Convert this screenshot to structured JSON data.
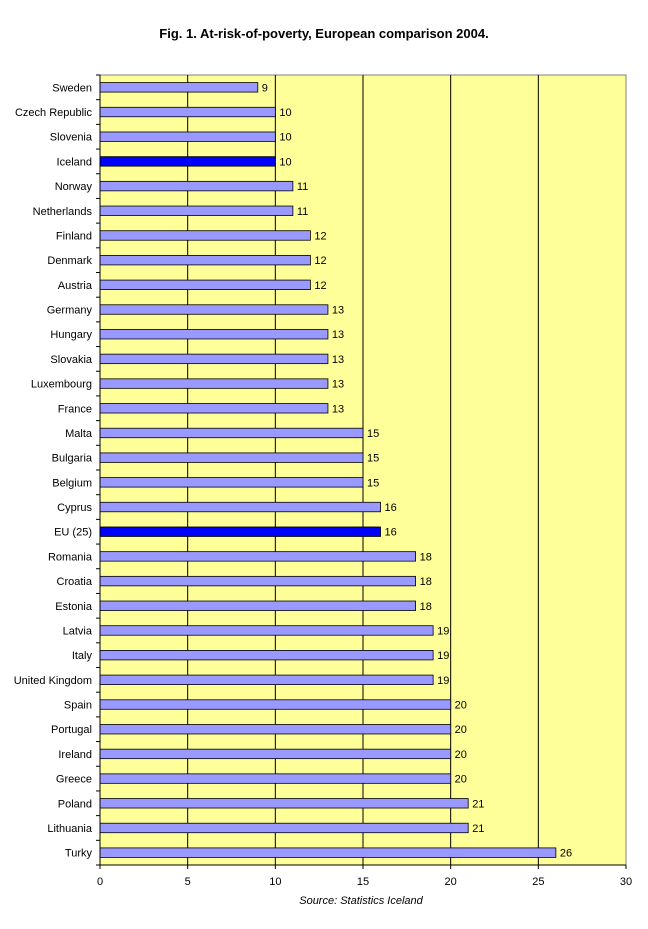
{
  "chart_data": {
    "type": "bar",
    "orientation": "horizontal",
    "title": "Fig. 1. At-risk-of-poverty, European comparison 2004.",
    "source": "Source: Statistics Iceland",
    "categories": [
      "Sweden",
      "Czech Republic",
      "Slovenia",
      "Iceland",
      "Norway",
      "Netherlands",
      "Finland",
      "Denmark",
      "Austria",
      "Germany",
      "Hungary",
      "Slovakia",
      "Luxembourg",
      "France",
      "Malta",
      "Bulgaria",
      "Belgium",
      "Cyprus",
      "EU (25)",
      "Romania",
      "Croatia",
      "Estonia",
      "Latvia",
      "Italy",
      "United Kingdom",
      "Spain",
      "Portugal",
      "Ireland",
      "Greece",
      "Poland",
      "Lithuania",
      "Turky"
    ],
    "values": [
      9,
      10,
      10,
      10,
      11,
      11,
      12,
      12,
      12,
      13,
      13,
      13,
      13,
      13,
      15,
      15,
      15,
      16,
      16,
      18,
      18,
      18,
      19,
      19,
      19,
      20,
      20,
      20,
      20,
      21,
      21,
      26
    ],
    "highlighted": [
      "Iceland",
      "EU (25)"
    ],
    "xlim": [
      0,
      30
    ],
    "xticks": [
      0,
      5,
      10,
      15,
      20,
      25,
      30
    ],
    "grid": "vertical at major ticks",
    "colors": {
      "plot_background": "#FFFF99",
      "bar": "#9999FF",
      "bar_highlight": "#0000FF",
      "bar_border": "#000000",
      "gridline": "#000000"
    }
  }
}
